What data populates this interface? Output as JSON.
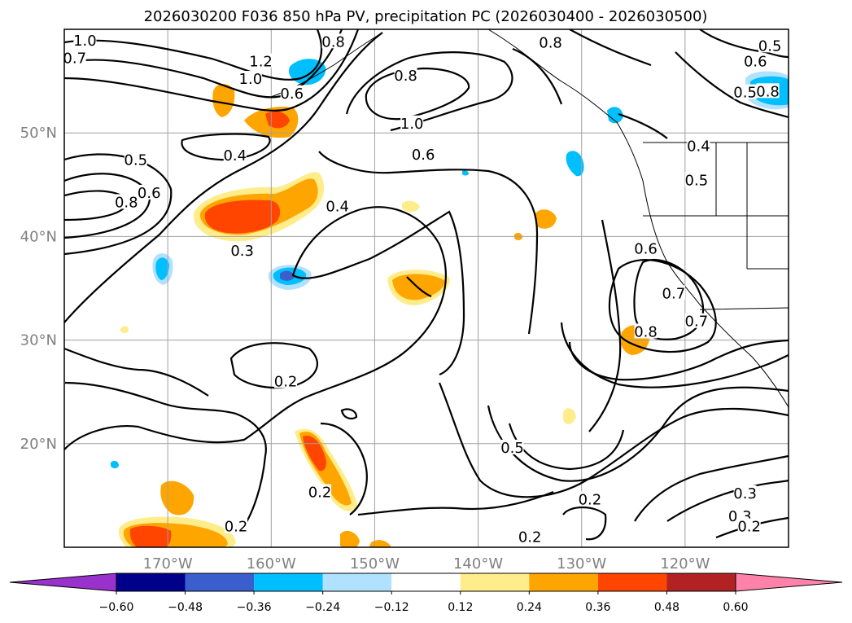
{
  "title": "2026030200 F036 850 hPa PV, precipitation PC (2026030400 - 2026030500)",
  "map": {
    "lon_range": [
      -180,
      -110
    ],
    "lat_range": [
      10,
      60
    ],
    "grid": true,
    "lon_ticks": [
      {
        "value": -170,
        "label": "170°W"
      },
      {
        "value": -160,
        "label": "160°W"
      },
      {
        "value": -150,
        "label": "150°W"
      },
      {
        "value": -140,
        "label": "140°W"
      },
      {
        "value": -130,
        "label": "130°W"
      },
      {
        "value": -120,
        "label": "120°W"
      }
    ],
    "lat_ticks": [
      {
        "value": 20,
        "label": "20°N"
      },
      {
        "value": 30,
        "label": "30°N"
      },
      {
        "value": 40,
        "label": "40°N"
      },
      {
        "value": 50,
        "label": "50°N"
      }
    ],
    "contour_labels": [
      {
        "text": "1.0",
        "lon": -178.0,
        "lat": 58.9
      },
      {
        "text": "0.7",
        "lon": -179.0,
        "lat": 57.2
      },
      {
        "text": "1.2",
        "lon": -161.0,
        "lat": 56.9
      },
      {
        "text": "1.0",
        "lon": -162.0,
        "lat": 55.2
      },
      {
        "text": "0.8",
        "lon": -154.0,
        "lat": 58.8
      },
      {
        "text": "0.6",
        "lon": -158.0,
        "lat": 53.8
      },
      {
        "text": "0.8",
        "lon": -133.0,
        "lat": 58.7
      },
      {
        "text": "0.8",
        "lon": -147.0,
        "lat": 55.5
      },
      {
        "text": "1.0",
        "lon": -146.4,
        "lat": 50.9
      },
      {
        "text": "0.6",
        "lon": -145.3,
        "lat": 47.9
      },
      {
        "text": "0.4",
        "lon": -163.5,
        "lat": 47.8
      },
      {
        "text": "0.5",
        "lon": -173.1,
        "lat": 47.4
      },
      {
        "text": "0.6",
        "lon": -171.8,
        "lat": 44.2
      },
      {
        "text": "0.8",
        "lon": -174.0,
        "lat": 43.3
      },
      {
        "text": "0.4",
        "lon": -153.6,
        "lat": 42.9
      },
      {
        "text": "0.3",
        "lon": -162.8,
        "lat": 38.6
      },
      {
        "text": "0.5",
        "lon": -111.8,
        "lat": 58.4
      },
      {
        "text": "0.6",
        "lon": -113.2,
        "lat": 56.9
      },
      {
        "text": "0.8",
        "lon": -112.0,
        "lat": 54.0
      },
      {
        "text": "0.5",
        "lon": -114.2,
        "lat": 53.9
      },
      {
        "text": "0.5",
        "lon": -118.9,
        "lat": 45.4
      },
      {
        "text": "0.4",
        "lon": -118.7,
        "lat": 48.7
      },
      {
        "text": "0.6",
        "lon": -123.8,
        "lat": 38.8
      },
      {
        "text": "0.7",
        "lon": -121.1,
        "lat": 34.5
      },
      {
        "text": "0.8",
        "lon": -123.8,
        "lat": 30.8
      },
      {
        "text": "0.7",
        "lon": -118.9,
        "lat": 31.8
      },
      {
        "text": "0.2",
        "lon": -158.6,
        "lat": 26.0
      },
      {
        "text": "0.5",
        "lon": -136.7,
        "lat": 19.6
      },
      {
        "text": "0.2",
        "lon": -155.3,
        "lat": 15.3
      },
      {
        "text": "0.2",
        "lon": -163.4,
        "lat": 12.0
      },
      {
        "text": "0.2",
        "lon": -135.0,
        "lat": 11.0
      },
      {
        "text": "0.2",
        "lon": -129.2,
        "lat": 14.6
      },
      {
        "text": "0.3",
        "lon": -114.2,
        "lat": 15.2
      },
      {
        "text": "0.3",
        "lon": -114.7,
        "lat": 13.0
      },
      {
        "text": "0.2",
        "lon": -113.8,
        "lat": 12.0
      }
    ]
  },
  "colorbar": {
    "ticks": [
      "−0.60",
      "−0.48",
      "−0.36",
      "−0.24",
      "−0.12",
      "0.12",
      "0.24",
      "0.36",
      "0.48",
      "0.60"
    ],
    "colors": [
      "#9932cc",
      "#00008b",
      "#3a5fcd",
      "#00bfff",
      "#b0e2ff",
      "#ffffff",
      "#ffec8b",
      "#ffa500",
      "#ff4500",
      "#b22222",
      "#ff82ab"
    ]
  }
}
